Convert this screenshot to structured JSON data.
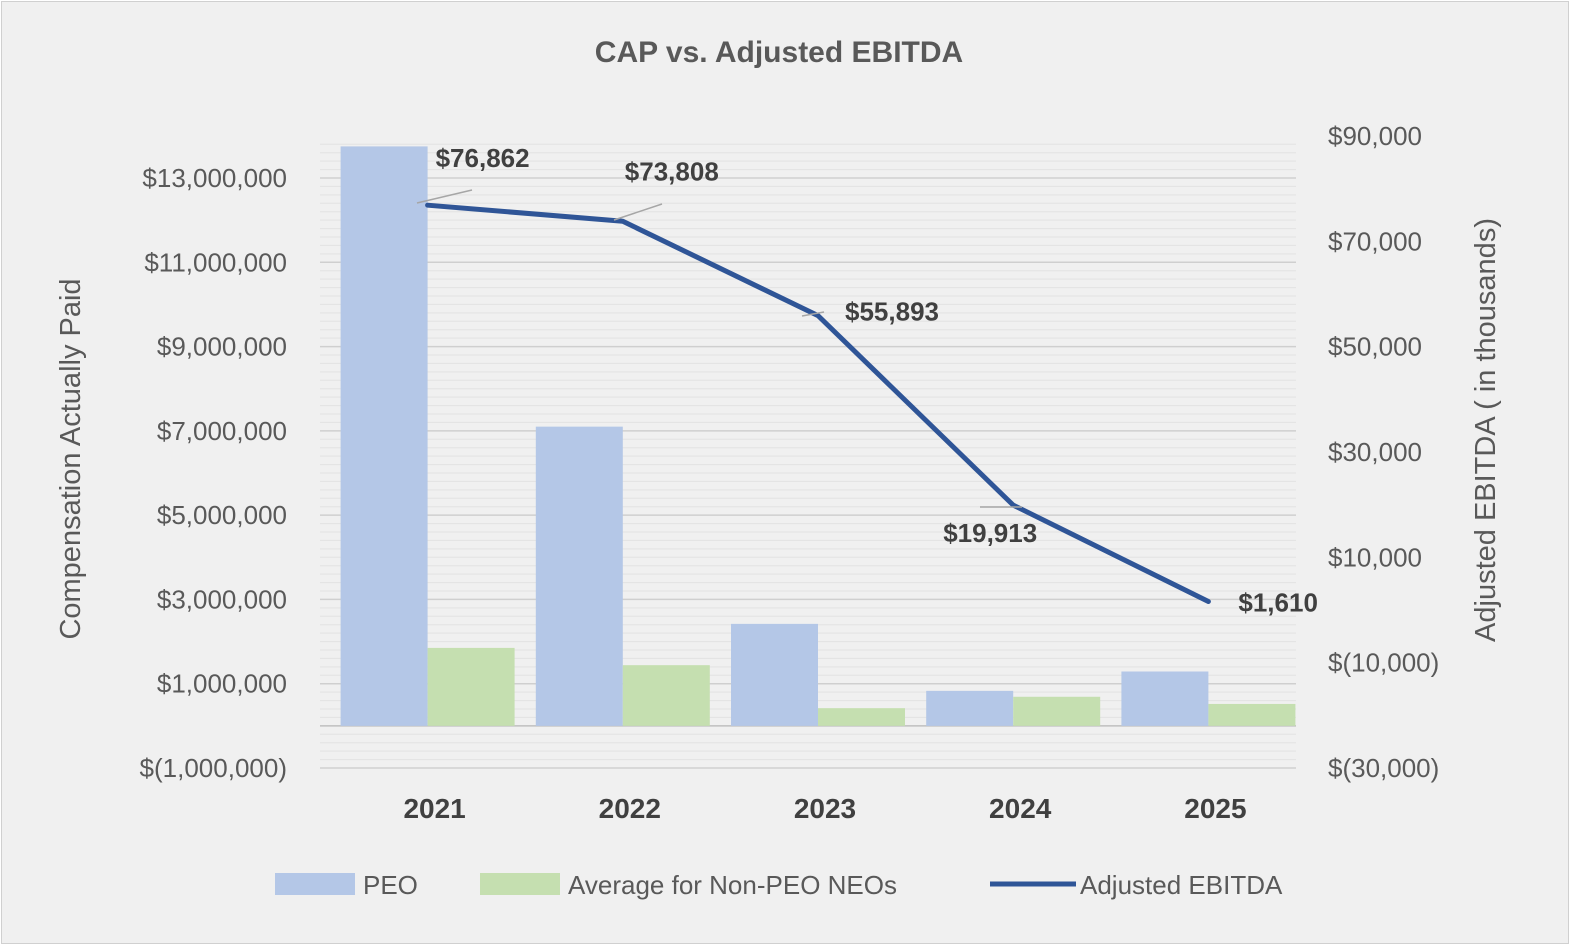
{
  "chart_data": {
    "type": "bar",
    "title": "CAP vs. Adjusted EBITDA",
    "categories": [
      "2021",
      "2022",
      "2023",
      "2024",
      "2025"
    ],
    "ylabel": "Compensation Actually Paid",
    "y2label": "Adjusted EBITDA ( in thousands)",
    "ylim": [
      -1000000,
      14000000
    ],
    "y2lim": [
      -30000,
      90000
    ],
    "yticks": [
      -1000000,
      1000000,
      3000000,
      5000000,
      7000000,
      9000000,
      11000000,
      13000000
    ],
    "ytick_labels": [
      "$(1,000,000)",
      "$1,000,000",
      "$3,000,000",
      "$5,000,000",
      "$7,000,000",
      "$9,000,000",
      "$11,000,000",
      "$13,000,000"
    ],
    "y2ticks": [
      -30000,
      -10000,
      10000,
      30000,
      50000,
      70000,
      90000
    ],
    "y2tick_labels": [
      "$(30,000)",
      "$(10,000)",
      "$10,000",
      "$30,000",
      "$50,000",
      "$70,000",
      "$90,000"
    ],
    "grid": true,
    "legend_position": "bottom",
    "series": [
      {
        "name": "PEO",
        "kind": "bar",
        "axis": "left",
        "color": "#b4c7e7",
        "values": [
          13750000,
          7100000,
          2420000,
          830000,
          1290000
        ]
      },
      {
        "name": "Average for Non-PEO NEOs",
        "kind": "bar",
        "axis": "left",
        "color": "#c5dfb0",
        "values": [
          1850000,
          1440000,
          420000,
          690000,
          520000
        ]
      },
      {
        "name": "Adjusted EBITDA",
        "kind": "line",
        "axis": "right",
        "color": "#2f5597",
        "values": [
          76862,
          73808,
          55893,
          19913,
          1610
        ],
        "labels": [
          "$76,862",
          "$73,808",
          "$55,893",
          "$19,913",
          "$1,610"
        ]
      }
    ]
  }
}
